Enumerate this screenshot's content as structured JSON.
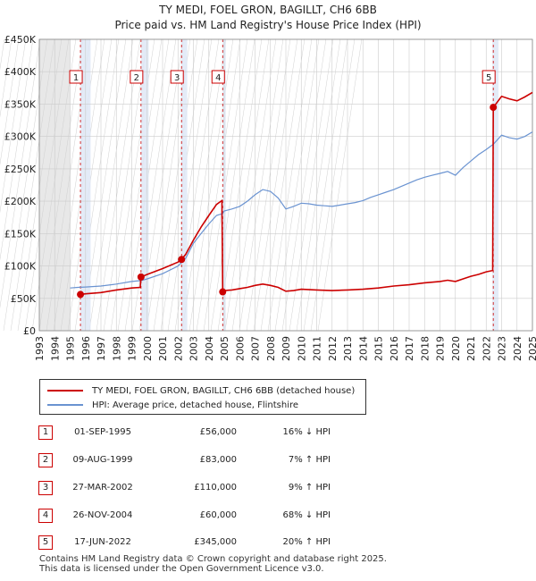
{
  "header": {
    "title": "TY MEDI, FOEL GRON, BAGILLT, CH6 6BB",
    "subtitle": "Price paid vs. HM Land Registry's House Price Index (HPI)"
  },
  "legend": {
    "items": [
      {
        "label": "TY MEDI, FOEL GRON, BAGILLT, CH6 6BB (detached house)",
        "color": "#cc0000"
      },
      {
        "label": "HPI: Average price, detached house, Flintshire",
        "color": "#6a93d1"
      }
    ]
  },
  "sales": [
    {
      "num": "1",
      "date": "01-SEP-1995",
      "price": "£56,000",
      "hpi": "16% ↓ HPI"
    },
    {
      "num": "2",
      "date": "09-AUG-1999",
      "price": "£83,000",
      "hpi": "7% ↑ HPI"
    },
    {
      "num": "3",
      "date": "27-MAR-2002",
      "price": "£110,000",
      "hpi": "9% ↑ HPI"
    },
    {
      "num": "4",
      "date": "26-NOV-2004",
      "price": "£60,000",
      "hpi": "68% ↓ HPI"
    },
    {
      "num": "5",
      "date": "17-JUN-2022",
      "price": "£345,000",
      "hpi": "20% ↑ HPI"
    }
  ],
  "footer": {
    "line1": "Contains HM Land Registry data © Crown copyright and database right 2025.",
    "line2": "This data is licensed under the Open Government Licence v3.0."
  },
  "chart_data": {
    "type": "line",
    "xlim": [
      1993,
      2025
    ],
    "ylim": [
      0,
      450000
    ],
    "x_ticks": [
      "1993",
      "1994",
      "1995",
      "1996",
      "1997",
      "1998",
      "1999",
      "2000",
      "2001",
      "2002",
      "2003",
      "2004",
      "2005",
      "2006",
      "2007",
      "2008",
      "2009",
      "2010",
      "2011",
      "2012",
      "2013",
      "2014",
      "2015",
      "2016",
      "2017",
      "2018",
      "2019",
      "2020",
      "2021",
      "2022",
      "2023",
      "2024",
      "2025"
    ],
    "y_ticks": [
      {
        "value": 0,
        "label": "£0"
      },
      {
        "value": 50000,
        "label": "£50K"
      },
      {
        "value": 100000,
        "label": "£100K"
      },
      {
        "value": 150000,
        "label": "£150K"
      },
      {
        "value": 200000,
        "label": "£200K"
      },
      {
        "value": 250000,
        "label": "£250K"
      },
      {
        "value": 300000,
        "label": "£300K"
      },
      {
        "value": 350000,
        "label": "£350K"
      },
      {
        "value": 400000,
        "label": "£400K"
      },
      {
        "value": 450000,
        "label": "£450K"
      }
    ],
    "grid": true,
    "shaded_ranges": [
      [
        1993,
        1995
      ],
      [
        2025,
        2025.5
      ]
    ],
    "sale_bands": [
      [
        1995.67,
        1996.33
      ],
      [
        1999.6,
        2000.1
      ],
      [
        2002.2,
        2002.6
      ],
      [
        2004.9,
        2005.1
      ],
      [
        2022.4,
        2022.8
      ]
    ],
    "sales_markers": [
      {
        "num": "1",
        "x": 1995.67,
        "y": 56000
      },
      {
        "num": "2",
        "x": 1999.6,
        "y": 83000
      },
      {
        "num": "3",
        "x": 2002.23,
        "y": 110000
      },
      {
        "num": "4",
        "x": 2004.9,
        "y": 60000
      },
      {
        "num": "5",
        "x": 2022.46,
        "y": 345000
      }
    ],
    "series": [
      {
        "name": "HPI: Average price, detached house, Flintshire",
        "color": "#6a93d1",
        "points": [
          [
            1995,
            66000
          ],
          [
            1995.5,
            67000
          ],
          [
            1996,
            67500
          ],
          [
            1997,
            69000
          ],
          [
            1998,
            72000
          ],
          [
            1999,
            76000
          ],
          [
            1999.6,
            77500
          ],
          [
            2000,
            80000
          ],
          [
            2001,
            88000
          ],
          [
            2002,
            100000
          ],
          [
            2002.5,
            112000
          ],
          [
            2003,
            135000
          ],
          [
            2003.5,
            150000
          ],
          [
            2004,
            165000
          ],
          [
            2004.5,
            178000
          ],
          [
            2004.9,
            181000
          ],
          [
            2005,
            185000
          ],
          [
            2005.5,
            188000
          ],
          [
            2006,
            192000
          ],
          [
            2006.5,
            200000
          ],
          [
            2007,
            210000
          ],
          [
            2007.5,
            218000
          ],
          [
            2008,
            215000
          ],
          [
            2008.5,
            205000
          ],
          [
            2009,
            188000
          ],
          [
            2009.5,
            192000
          ],
          [
            2010,
            197000
          ],
          [
            2010.5,
            196000
          ],
          [
            2011,
            194000
          ],
          [
            2011.5,
            193000
          ],
          [
            2012,
            192000
          ],
          [
            2012.5,
            194000
          ],
          [
            2013,
            196000
          ],
          [
            2013.5,
            198000
          ],
          [
            2014,
            201000
          ],
          [
            2014.5,
            206000
          ],
          [
            2015,
            210000
          ],
          [
            2015.5,
            214000
          ],
          [
            2016,
            218000
          ],
          [
            2016.5,
            223000
          ],
          [
            2017,
            228000
          ],
          [
            2017.5,
            233000
          ],
          [
            2018,
            237000
          ],
          [
            2018.5,
            240000
          ],
          [
            2019,
            243000
          ],
          [
            2019.5,
            246000
          ],
          [
            2020,
            240000
          ],
          [
            2020.5,
            252000
          ],
          [
            2021,
            262000
          ],
          [
            2021.5,
            272000
          ],
          [
            2022,
            280000
          ],
          [
            2022.46,
            288000
          ],
          [
            2023,
            302000
          ],
          [
            2023.5,
            298000
          ],
          [
            2024,
            296000
          ],
          [
            2024.5,
            300000
          ],
          [
            2025,
            307000
          ]
        ]
      },
      {
        "name": "TY MEDI, FOEL GRON, BAGILLT, CH6 6BB (detached house)",
        "color": "#cc0000",
        "points": [
          [
            1995.67,
            56000
          ],
          [
            1996,
            57000
          ],
          [
            1997,
            59000
          ],
          [
            1998,
            63000
          ],
          [
            1999,
            66000
          ],
          [
            1999.55,
            67000
          ],
          [
            1999.6,
            83000
          ],
          [
            2000,
            87000
          ],
          [
            2001,
            96000
          ],
          [
            2002,
            106000
          ],
          [
            2002.23,
            110000
          ],
          [
            2002.5,
            118000
          ],
          [
            2003,
            140000
          ],
          [
            2003.5,
            160000
          ],
          [
            2004,
            178000
          ],
          [
            2004.5,
            195000
          ],
          [
            2004.85,
            201000
          ],
          [
            2004.9,
            60000
          ],
          [
            2005,
            62000
          ],
          [
            2005.5,
            63000
          ],
          [
            2006,
            65000
          ],
          [
            2006.5,
            67000
          ],
          [
            2007,
            70000
          ],
          [
            2007.5,
            72000
          ],
          [
            2008,
            70000
          ],
          [
            2008.5,
            67000
          ],
          [
            2009,
            61000
          ],
          [
            2009.5,
            62000
          ],
          [
            2010,
            64000
          ],
          [
            2011,
            63000
          ],
          [
            2012,
            62000
          ],
          [
            2013,
            63000
          ],
          [
            2014,
            64000
          ],
          [
            2015,
            66000
          ],
          [
            2016,
            69000
          ],
          [
            2017,
            71000
          ],
          [
            2018,
            74000
          ],
          [
            2019,
            76000
          ],
          [
            2019.5,
            78000
          ],
          [
            2020,
            76000
          ],
          [
            2020.5,
            80000
          ],
          [
            2021,
            84000
          ],
          [
            2021.5,
            87000
          ],
          [
            2022,
            91000
          ],
          [
            2022.42,
            93000
          ],
          [
            2022.46,
            345000
          ],
          [
            2023,
            362000
          ],
          [
            2023.5,
            358000
          ],
          [
            2024,
            355000
          ],
          [
            2024.5,
            361000
          ],
          [
            2025,
            368000
          ]
        ]
      }
    ]
  }
}
